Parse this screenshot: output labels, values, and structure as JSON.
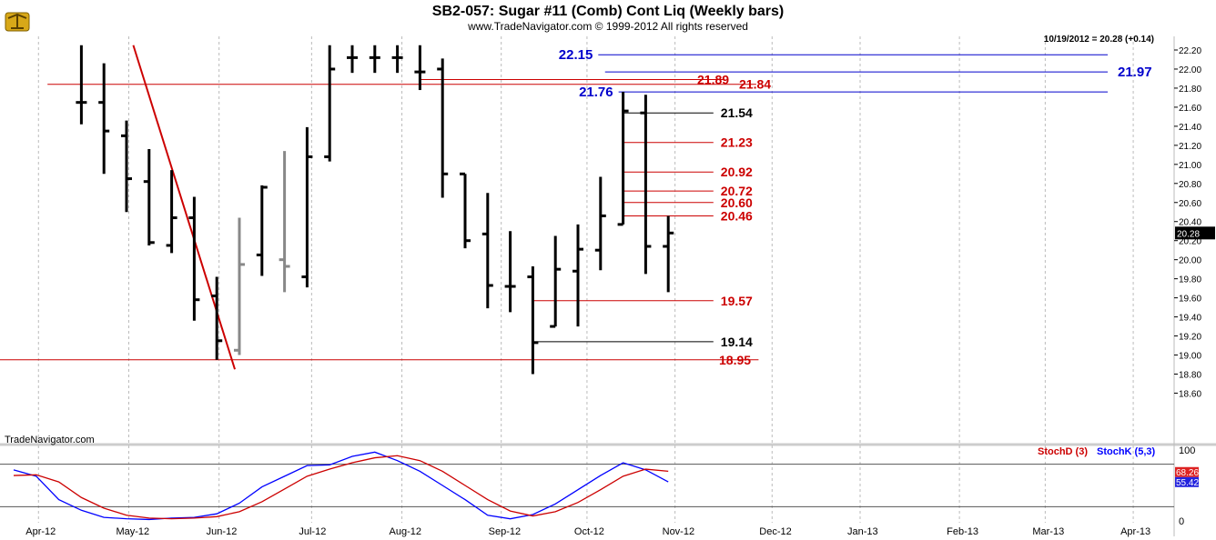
{
  "header": {
    "title": "SB2-057:  Sugar #11 (Comb) Cont Liq  (Weekly bars)",
    "copyright": "www.TradeNavigator.com © 1999-2012 All rights reserved",
    "last_quote": "10/19/2012 = 20.28 (+0.14)",
    "watermark": "TradeNavigator.com",
    "logo": "trade-navigator-logo-icon"
  },
  "colors": {
    "up_line": "#cc0000",
    "support_line": "#cc0000",
    "resistance_blue": "#0000cc",
    "price_bar": "#000000",
    "stoch_k": "#0000ff",
    "stoch_d": "#cc0000",
    "stoch_k_box": "#2222dd",
    "stoch_d_box": "#dd2222",
    "grid": "#bbbbbb"
  },
  "chart_data": [
    {
      "type": "ohlc",
      "title": "SB2-057:  Sugar #11 (Comb) Cont Liq  (Weekly bars)",
      "x_ticks": [
        "Apr-12",
        "May-12",
        "Jun-12",
        "Jul-12",
        "Aug-12",
        "Sep-12",
        "Oct-12",
        "Nov-12",
        "Dec-12",
        "Jan-13",
        "Feb-13",
        "Mar-13",
        "Apr-13"
      ],
      "y_ticks": [
        "18.60",
        "18.80",
        "19.00",
        "19.20",
        "19.40",
        "19.60",
        "19.80",
        "20.00",
        "20.20",
        "20.40",
        "20.60",
        "20.80",
        "21.00",
        "21.20",
        "21.40",
        "21.60",
        "21.80",
        "22.00",
        "22.20"
      ],
      "ylim": [
        18.6,
        22.25
      ],
      "current_price": "20.28",
      "bars": [
        {
          "week": 3,
          "open": 21.65,
          "high": 22.25,
          "low": 21.42,
          "close": 21.65,
          "color": "black"
        },
        {
          "week": 4,
          "open": 21.65,
          "high": 22.06,
          "low": 20.9,
          "close": 21.35,
          "color": "black"
        },
        {
          "week": 5,
          "open": 21.3,
          "high": 21.46,
          "low": 20.5,
          "close": 20.85,
          "color": "black"
        },
        {
          "week": 6,
          "open": 20.82,
          "high": 21.16,
          "low": 20.15,
          "close": 20.18,
          "color": "black"
        },
        {
          "week": 7,
          "open": 20.15,
          "high": 20.94,
          "low": 20.07,
          "close": 20.44,
          "color": "black"
        },
        {
          "week": 8,
          "open": 20.44,
          "high": 20.66,
          "low": 19.36,
          "close": 19.58,
          "color": "black"
        },
        {
          "week": 9,
          "open": 19.62,
          "high": 19.82,
          "low": 18.95,
          "close": 19.15,
          "color": "black"
        },
        {
          "week": 10,
          "open": 19.05,
          "high": 20.44,
          "low": 19.0,
          "close": 19.95,
          "color": "gray"
        },
        {
          "week": 11,
          "open": 20.05,
          "high": 20.78,
          "low": 19.83,
          "close": 20.76,
          "color": "black"
        },
        {
          "week": 12,
          "open": 20.0,
          "high": 21.14,
          "low": 19.66,
          "close": 19.93,
          "color": "gray"
        },
        {
          "week": 13,
          "open": 19.82,
          "high": 21.39,
          "low": 19.71,
          "close": 21.08,
          "color": "black"
        },
        {
          "week": 14,
          "open": 21.08,
          "high": 22.25,
          "low": 21.03,
          "close": 22.0,
          "color": "black"
        },
        {
          "week": 15,
          "open": 22.12,
          "high": 22.25,
          "low": 21.96,
          "close": 22.12,
          "color": "black"
        },
        {
          "week": 16,
          "open": 22.12,
          "high": 22.25,
          "low": 21.96,
          "close": 22.12,
          "color": "black"
        },
        {
          "week": 17,
          "open": 22.12,
          "high": 22.25,
          "low": 21.96,
          "close": 22.12,
          "color": "black"
        },
        {
          "week": 18,
          "open": 21.97,
          "high": 22.25,
          "low": 21.78,
          "close": 21.97,
          "color": "black"
        },
        {
          "week": 19,
          "open": 22.0,
          "high": 22.11,
          "low": 20.65,
          "close": 20.9,
          "color": "black"
        },
        {
          "week": 20,
          "open": 20.9,
          "high": 20.9,
          "low": 20.12,
          "close": 20.2,
          "color": "black"
        },
        {
          "week": 21,
          "open": 20.27,
          "high": 20.7,
          "low": 19.49,
          "close": 19.73,
          "color": "black"
        },
        {
          "week": 22,
          "open": 19.72,
          "high": 20.3,
          "low": 19.45,
          "close": 19.72,
          "color": "black"
        },
        {
          "week": 23,
          "open": 19.82,
          "high": 19.93,
          "low": 18.8,
          "close": 19.13,
          "color": "black"
        },
        {
          "week": 24,
          "open": 19.3,
          "high": 20.25,
          "low": 19.3,
          "close": 19.9,
          "color": "black"
        },
        {
          "week": 25,
          "open": 19.88,
          "high": 20.37,
          "low": 19.3,
          "close": 20.11,
          "color": "black"
        },
        {
          "week": 26,
          "open": 20.1,
          "high": 20.87,
          "low": 19.89,
          "close": 20.46,
          "color": "black"
        },
        {
          "week": 27,
          "open": 20.37,
          "high": 21.76,
          "low": 20.37,
          "close": 21.56,
          "color": "black"
        },
        {
          "week": 28,
          "open": 21.54,
          "high": 21.73,
          "low": 19.85,
          "close": 20.14,
          "color": "black"
        },
        {
          "week": 29,
          "open": 20.14,
          "high": 20.46,
          "low": 19.66,
          "close": 20.28,
          "color": "black"
        }
      ],
      "trend_line": {
        "from": {
          "week": 5.3,
          "price": 22.25
        },
        "to": {
          "week": 9.8,
          "price": 18.85
        }
      },
      "levels": [
        {
          "label": "22.15",
          "price": 22.15,
          "color": "blue",
          "from_week": 25.9,
          "to_week": 53.0,
          "label_side": "left"
        },
        {
          "label": "21.97",
          "price": 21.97,
          "color": "blue",
          "from_week": 26.2,
          "to_week": 53.0,
          "label_side": "right"
        },
        {
          "label": "21.89",
          "price": 21.89,
          "color": "red",
          "from_week": 18.0,
          "to_week": 31.5,
          "label_side": "right"
        },
        {
          "label": "21.84",
          "price": 21.84,
          "color": "red",
          "from_week": 1.5,
          "to_week": 32.9,
          "label_side": "right"
        },
        {
          "label": "21.76",
          "price": 21.76,
          "color": "blue",
          "from_week": 26.8,
          "to_week": 53.0,
          "label_side": "left"
        },
        {
          "label": "21.54",
          "price": 21.54,
          "color": "black",
          "from_week": 27.0,
          "to_week": 31.0,
          "label_side": "right"
        },
        {
          "label": "21.23",
          "price": 21.23,
          "color": "red",
          "from_week": 27.0,
          "to_week": 31.0,
          "label_side": "right"
        },
        {
          "label": "20.92",
          "price": 20.92,
          "color": "red",
          "from_week": 27.0,
          "to_week": 31.0,
          "label_side": "right"
        },
        {
          "label": "20.72",
          "price": 20.72,
          "color": "red",
          "from_week": 27.0,
          "to_week": 31.0,
          "label_side": "right"
        },
        {
          "label": "20.60",
          "price": 20.6,
          "color": "red",
          "from_week": 27.0,
          "to_week": 31.0,
          "label_side": "right"
        },
        {
          "label": "20.46",
          "price": 20.46,
          "color": "red",
          "from_week": 27.0,
          "to_week": 31.0,
          "label_side": "right"
        },
        {
          "label": "19.57",
          "price": 19.57,
          "color": "red",
          "from_week": 23.0,
          "to_week": 31.0,
          "label_side": "right"
        },
        {
          "label": "19.14",
          "price": 19.14,
          "color": "black",
          "from_week": 23.0,
          "to_week": 31.0,
          "label_side": "right"
        },
        {
          "label": "18.95",
          "price": 18.95,
          "color": "red",
          "from_week": -2.0,
          "to_week": 33.0,
          "label_side": "right"
        }
      ]
    },
    {
      "type": "line",
      "ylim": [
        0,
        100
      ],
      "y_ticks": [
        "0",
        "100"
      ],
      "legend": [
        "StochD (3)",
        "StochK (5,3)"
      ],
      "series": [
        {
          "name": "StochK (5,3)",
          "color": "blue",
          "last": "55.42",
          "values": [
            [
              0,
              72
            ],
            [
              1,
              63
            ],
            [
              2,
              30
            ],
            [
              3,
              15
            ],
            [
              4,
              5
            ],
            [
              5,
              3
            ],
            [
              6,
              2
            ],
            [
              7,
              4
            ],
            [
              8,
              5
            ],
            [
              9,
              10
            ],
            [
              10,
              25
            ],
            [
              11,
              48
            ],
            [
              12,
              63
            ],
            [
              13,
              78
            ],
            [
              14,
              79
            ],
            [
              15,
              91
            ],
            [
              16,
              97
            ],
            [
              17,
              85
            ],
            [
              18,
              70
            ],
            [
              19,
              50
            ],
            [
              20,
              30
            ],
            [
              21,
              8
            ],
            [
              22,
              3
            ],
            [
              23,
              9
            ],
            [
              24,
              24
            ],
            [
              25,
              44
            ],
            [
              26,
              64
            ],
            [
              27,
              82
            ],
            [
              28,
              72
            ],
            [
              29,
              55
            ]
          ]
        },
        {
          "name": "StochD (3)",
          "color": "red",
          "last": "68.26",
          "values": [
            [
              0,
              64
            ],
            [
              1,
              65
            ],
            [
              2,
              55
            ],
            [
              3,
              33
            ],
            [
              4,
              18
            ],
            [
              5,
              8
            ],
            [
              6,
              4
            ],
            [
              7,
              3
            ],
            [
              8,
              4
            ],
            [
              9,
              6
            ],
            [
              10,
              13
            ],
            [
              11,
              27
            ],
            [
              12,
              45
            ],
            [
              13,
              63
            ],
            [
              14,
              73
            ],
            [
              15,
              82
            ],
            [
              16,
              89
            ],
            [
              17,
              92
            ],
            [
              18,
              85
            ],
            [
              19,
              70
            ],
            [
              20,
              50
            ],
            [
              21,
              30
            ],
            [
              22,
              14
            ],
            [
              23,
              7
            ],
            [
              24,
              13
            ],
            [
              25,
              26
            ],
            [
              26,
              44
            ],
            [
              27,
              63
            ],
            [
              28,
              73
            ],
            [
              29,
              70
            ]
          ]
        }
      ]
    }
  ]
}
